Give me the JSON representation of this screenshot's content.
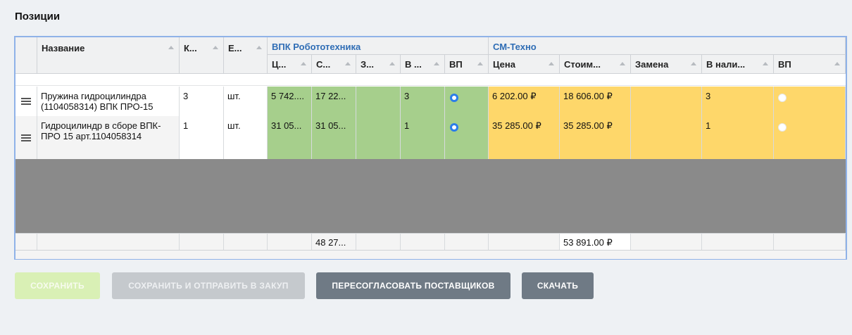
{
  "section_title": "Позиции",
  "columns": {
    "name": "Название",
    "qty": "К...",
    "unit": "Е...",
    "v_price": "Ц...",
    "v_cost": "С...",
    "v_repl": "З...",
    "v_stock": "В ...",
    "v_vp": "ВП",
    "s_price": "Цена",
    "s_cost": "Стоим...",
    "s_repl": "Замена",
    "s_stock": "В нали...",
    "s_vp": "ВП"
  },
  "suppliers": {
    "s1": "ВПК Робототехника",
    "s2": "СМ-Техно"
  },
  "rows": [
    {
      "name": "Пружина гидроцилиндра (1104058314) ВПК ПРО-15",
      "qty": "3",
      "unit": "шт.",
      "v_price": "5 742....",
      "v_cost": "17 22...",
      "v_repl": "",
      "v_stock": "3",
      "v_vp_selected": true,
      "s_price": "6 202.00 ₽",
      "s_cost": "18 606.00 ₽",
      "s_repl": "",
      "s_stock": "3",
      "s_vp_selected": false
    },
    {
      "name": "Гидроцилиндр в сборе ВПК-ПРО 15 арт.1104058314",
      "qty": "1",
      "unit": "шт.",
      "v_price": "31 05...",
      "v_cost": "31 05...",
      "v_repl": "",
      "v_stock": "1",
      "v_vp_selected": true,
      "s_price": "35 285.00 ₽",
      "s_cost": "35 285.00 ₽",
      "s_repl": "",
      "s_stock": "1",
      "s_vp_selected": false
    }
  ],
  "totals": {
    "v_cost": "48 27...",
    "s_cost": "53 891.00 ₽"
  },
  "buttons": {
    "save": "СОХРАНИТЬ",
    "save_send": "СОХРАНИТЬ И ОТПРАВИТЬ В ЗАКУП",
    "renegotiate": "ПЕРЕСОГЛАСОВАТЬ ПОСТАВЩИКОВ",
    "download": "СКАЧАТЬ"
  },
  "colors": {
    "supplier1_fill": "#a6cf8c",
    "supplier2_fill": "#fed76a",
    "supplier_header_text": "#2f6db5",
    "radio_selected": "#2b7de9",
    "save_button": "#d9f0b5",
    "save_send_button": "#c5c9cd",
    "renegotiate_button": "#6f7a85",
    "download_button": "#6f7a85",
    "grid_border": "#8fb2e8"
  },
  "icons": {
    "drag_handle": "drag-handle-icon",
    "sort": "sort-up-icon",
    "radio": "radio-icon"
  }
}
